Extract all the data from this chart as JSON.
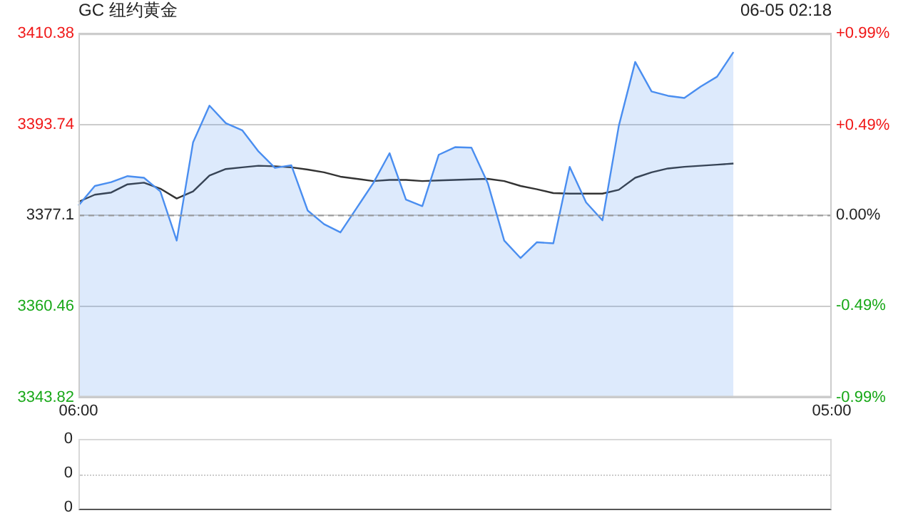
{
  "chart_data": [
    {
      "type": "line",
      "title": "GC 纽约黄金",
      "subtitle": "06-05 02:18",
      "marker": "none",
      "grid": "y",
      "categories": [
        "06:00",
        null,
        null,
        null,
        null,
        null,
        null,
        null,
        null,
        null,
        null,
        null,
        null,
        null,
        null,
        null,
        null,
        null,
        null,
        null,
        null,
        null,
        null,
        null,
        null,
        null,
        null,
        null,
        null,
        null,
        null,
        null,
        null,
        null,
        null,
        null,
        null,
        null,
        null,
        null,
        null,
        null,
        null,
        null,
        null,
        null,
        "05:00"
      ],
      "ylim": [
        3343.82,
        3410.38
      ],
      "yticks": [
        3343.82,
        3360.46,
        3377.1,
        3393.74,
        3410.38
      ],
      "y2lim": [
        -0.99,
        0.99
      ],
      "y2ticks": [
        {
          "value": -0.99,
          "label": "-0.99%"
        },
        {
          "value": -0.49,
          "label": "-0.49%"
        },
        {
          "value": 0,
          "label": "0.00%"
        },
        {
          "value": 0.49,
          "label": "+0.49%"
        },
        {
          "value": 0.99,
          "label": "+0.99%"
        }
      ],
      "ref_lines": [
        {
          "axis": "y",
          "value": 3377.1,
          "color": "#999999",
          "line_style": "dashed"
        }
      ],
      "series": [
        {
          "type": "area",
          "color": "#4a8ef0",
          "values": [
            3378.9,
            3382.5,
            3383.2,
            3384.3,
            3384.0,
            3381.5,
            3372.5,
            3390.5,
            3397.2,
            3394.0,
            3392.7,
            3388.8,
            3385.8,
            3386.3,
            3378.0,
            3375.5,
            3374.0,
            3378.5,
            3383.0,
            3388.5,
            3380.0,
            3378.8,
            3388.2,
            3389.6,
            3389.5,
            3383.0,
            3372.5,
            3369.3,
            3372.2,
            3372.0,
            3386.0,
            3379.5,
            3376.2,
            3393.5,
            3405.2,
            3399.8,
            3399.0,
            3398.6,
            3400.7,
            3402.5,
            3407.0,
            null,
            null,
            null,
            null,
            null,
            null
          ]
        },
        {
          "type": "line",
          "color": "#333333",
          "values": [
            3379.6,
            3380.9,
            3381.3,
            3382.8,
            3383.1,
            3382.0,
            3380.2,
            3381.5,
            3384.4,
            3385.6,
            3385.9,
            3386.2,
            3386.1,
            3385.9,
            3385.5,
            3385.0,
            3384.2,
            3383.8,
            3383.4,
            3383.6,
            3383.6,
            3383.4,
            3383.5,
            3383.6,
            3383.7,
            3383.8,
            3383.4,
            3382.5,
            3381.9,
            3381.2,
            3381.1,
            3381.1,
            3381.1,
            3381.8,
            3384.0,
            3385.0,
            3385.7,
            3386.0,
            3386.2,
            3386.4,
            3386.6,
            null,
            null,
            null,
            null,
            null,
            null
          ]
        }
      ]
    },
    {
      "type": "other",
      "annotations": [
        "0",
        "0",
        "0"
      ]
    }
  ]
}
